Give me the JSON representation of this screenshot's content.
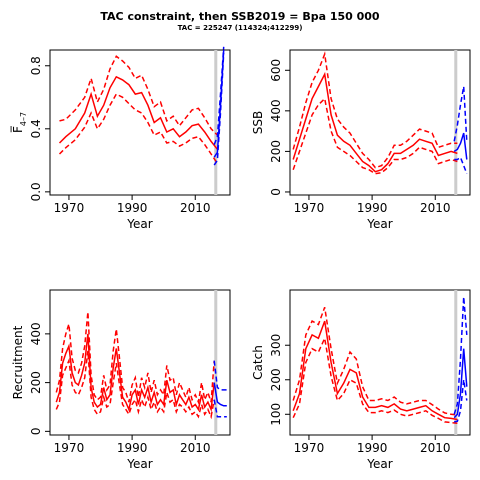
{
  "header": {
    "title": "TAC constraint, then  SSB2019 = Bpa 150 000",
    "subtitle": "TAC = 225247 (114324;412299)"
  },
  "colors": {
    "historic": "#ff0000",
    "projection": "#0000ff",
    "divider": "#cccccc"
  },
  "chart_data": [
    {
      "type": "line",
      "name": "fbar-panel",
      "xlabel": "Year",
      "ylabel": "F̅",
      "ylabel_sub": "4–7",
      "xlim": [
        1964,
        2021
      ],
      "ylim": [
        -0.02,
        0.9
      ],
      "xticks": [
        1970,
        1990,
        2010
      ],
      "yticks": [
        0.0,
        0.4,
        0.8
      ],
      "ytick_labels": [
        "0.0",
        "0.4",
        "0.8"
      ],
      "divider_year": 2016.5,
      "historic": {
        "years": [
          1967,
          1969,
          1972,
          1975,
          1977,
          1979,
          1981,
          1983,
          1985,
          1987,
          1989,
          1991,
          1993,
          1995,
          1997,
          1999,
          2001,
          2003,
          2005,
          2007,
          2009,
          2011,
          2013,
          2015,
          2017
        ],
        "mid": [
          0.31,
          0.35,
          0.4,
          0.5,
          0.62,
          0.48,
          0.55,
          0.66,
          0.73,
          0.71,
          0.68,
          0.62,
          0.63,
          0.55,
          0.44,
          0.47,
          0.38,
          0.4,
          0.35,
          0.38,
          0.42,
          0.43,
          0.38,
          0.32,
          0.27
        ],
        "lo": [
          0.24,
          0.28,
          0.33,
          0.41,
          0.5,
          0.4,
          0.46,
          0.55,
          0.62,
          0.6,
          0.56,
          0.52,
          0.5,
          0.44,
          0.36,
          0.38,
          0.31,
          0.32,
          0.29,
          0.31,
          0.34,
          0.35,
          0.3,
          0.24,
          0.18
        ],
        "hi": [
          0.45,
          0.46,
          0.52,
          0.6,
          0.72,
          0.57,
          0.65,
          0.78,
          0.86,
          0.83,
          0.79,
          0.72,
          0.74,
          0.65,
          0.54,
          0.57,
          0.45,
          0.48,
          0.42,
          0.47,
          0.52,
          0.53,
          0.47,
          0.4,
          0.36
        ]
      },
      "projection": {
        "years": [
          2016,
          2017,
          2018,
          2019
        ],
        "mid": [
          0.22,
          0.25,
          0.55,
          0.9
        ],
        "lo": [
          0.17,
          0.2,
          0.5,
          0.88
        ],
        "hi": [
          0.3,
          0.35,
          0.62,
          0.92
        ]
      }
    },
    {
      "type": "line",
      "name": "ssb-panel",
      "xlabel": "Year",
      "ylabel": "SSB",
      "ylim": [
        -15,
        700
      ],
      "xlim": [
        1964,
        2021
      ],
      "xticks": [
        1970,
        1990,
        2010
      ],
      "yticks": [
        0,
        200,
        400,
        600
      ],
      "ytick_labels": [
        "0",
        "200",
        "400",
        "600"
      ],
      "divider_year": 2016.5,
      "historic": {
        "years": [
          1965,
          1967,
          1969,
          1971,
          1973,
          1975,
          1977,
          1979,
          1981,
          1983,
          1985,
          1987,
          1989,
          1991,
          1993,
          1995,
          1997,
          1999,
          2001,
          2003,
          2005,
          2007,
          2009,
          2011,
          2013,
          2015,
          2017
        ],
        "mid": [
          160,
          260,
          360,
          460,
          520,
          580,
          380,
          280,
          250,
          230,
          190,
          150,
          130,
          100,
          110,
          140,
          190,
          190,
          210,
          230,
          260,
          250,
          240,
          180,
          190,
          200,
          190
        ],
        "lo": [
          110,
          200,
          290,
          380,
          430,
          460,
          300,
          220,
          200,
          180,
          150,
          120,
          110,
          90,
          95,
          120,
          160,
          160,
          170,
          190,
          220,
          210,
          200,
          140,
          150,
          160,
          150
        ],
        "hi": [
          210,
          320,
          440,
          540,
          600,
          680,
          460,
          360,
          320,
          290,
          240,
          190,
          160,
          120,
          130,
          170,
          230,
          230,
          250,
          280,
          310,
          300,
          290,
          220,
          230,
          240,
          240
        ]
      },
      "projection": {
        "years": [
          2016,
          2017,
          2018,
          2019,
          2020
        ],
        "mid": [
          200,
          210,
          240,
          290,
          160
        ],
        "lo": [
          160,
          160,
          170,
          130,
          90
        ],
        "hi": [
          250,
          330,
          430,
          520,
          250
        ]
      }
    },
    {
      "type": "line",
      "name": "recruitment-panel",
      "xlabel": "Year",
      "ylabel": "Recruitment",
      "xlim": [
        1964,
        2021
      ],
      "ylim": [
        -15,
        580
      ],
      "xticks": [
        1970,
        1990,
        2010
      ],
      "yticks": [
        0,
        200,
        400
      ],
      "ytick_labels": [
        "0",
        "200",
        "400"
      ],
      "divider_year": 2016.5,
      "historic": {
        "years": [
          1966,
          1967,
          1968,
          1969,
          1970,
          1971,
          1972,
          1973,
          1974,
          1975,
          1976,
          1977,
          1978,
          1979,
          1980,
          1981,
          1982,
          1983,
          1984,
          1985,
          1986,
          1987,
          1988,
          1989,
          1990,
          1991,
          1992,
          1993,
          1994,
          1995,
          1996,
          1997,
          1998,
          1999,
          2000,
          2001,
          2002,
          2003,
          2004,
          2005,
          2006,
          2007,
          2008,
          2009,
          2010,
          2011,
          2012,
          2013,
          2014,
          2015,
          2016
        ],
        "mid": [
          120,
          160,
          280,
          320,
          350,
          240,
          200,
          190,
          230,
          280,
          400,
          180,
          120,
          100,
          110,
          180,
          130,
          150,
          260,
          340,
          240,
          140,
          120,
          90,
          150,
          170,
          110,
          170,
          140,
          180,
          120,
          160,
          110,
          130,
          110,
          210,
          160,
          170,
          110,
          150,
          130,
          110,
          140,
          100,
          110,
          90,
          150,
          100,
          120,
          90,
          200
        ],
        "lo": [
          90,
          120,
          230,
          260,
          290,
          190,
          160,
          150,
          180,
          220,
          330,
          140,
          90,
          70,
          80,
          140,
          100,
          110,
          200,
          280,
          190,
          110,
          90,
          70,
          110,
          130,
          80,
          130,
          100,
          140,
          90,
          120,
          80,
          100,
          80,
          160,
          120,
          130,
          80,
          110,
          100,
          80,
          100,
          70,
          80,
          60,
          110,
          70,
          90,
          60,
          130
        ],
        "hi": [
          160,
          210,
          340,
          400,
          440,
          300,
          250,
          240,
          280,
          350,
          490,
          230,
          150,
          130,
          140,
          230,
          170,
          190,
          330,
          420,
          300,
          180,
          160,
          120,
          190,
          220,
          140,
          220,
          180,
          240,
          160,
          210,
          150,
          170,
          150,
          270,
          210,
          220,
          150,
          200,
          170,
          140,
          180,
          130,
          150,
          120,
          200,
          130,
          160,
          120,
          290
        ]
      },
      "projection": {
        "years": [
          2016,
          2017,
          2018,
          2019,
          2020
        ],
        "mid": [
          200,
          120,
          110,
          105,
          105
        ],
        "lo": [
          130,
          60,
          60,
          60,
          60
        ],
        "hi": [
          290,
          180,
          170,
          170,
          170
        ]
      }
    },
    {
      "type": "line",
      "name": "catch-panel",
      "xlabel": "Year",
      "ylabel": "Catch",
      "xlim": [
        1964,
        2021
      ],
      "ylim": [
        40,
        460
      ],
      "xticks": [
        1970,
        1990,
        2010
      ],
      "yticks": [
        100,
        200,
        300
      ],
      "ytick_labels": [
        "100",
        "200",
        "300"
      ],
      "divider_year": 2016.5,
      "historic": {
        "years": [
          1965,
          1967,
          1969,
          1971,
          1973,
          1975,
          1977,
          1979,
          1981,
          1983,
          1985,
          1987,
          1989,
          1991,
          1993,
          1995,
          1997,
          1999,
          2001,
          2003,
          2005,
          2007,
          2009,
          2011,
          2013,
          2015,
          2017
        ],
        "mid": [
          110,
          160,
          290,
          330,
          320,
          370,
          250,
          160,
          190,
          230,
          220,
          150,
          120,
          120,
          125,
          120,
          130,
          115,
          110,
          115,
          120,
          125,
          110,
          100,
          90,
          88,
          85
        ],
        "lo": [
          90,
          130,
          250,
          290,
          280,
          320,
          210,
          140,
          160,
          200,
          190,
          130,
          105,
          105,
          110,
          105,
          112,
          100,
          95,
          100,
          105,
          110,
          97,
          88,
          78,
          76,
          74
        ],
        "hi": [
          140,
          200,
          330,
          370,
          360,
          410,
          290,
          190,
          230,
          280,
          260,
          180,
          140,
          140,
          145,
          140,
          150,
          135,
          130,
          135,
          140,
          140,
          128,
          115,
          104,
          100,
          98
        ]
      },
      "projection": {
        "years": [
          2016,
          2017,
          2018,
          2019,
          2020
        ],
        "mid": [
          90,
          100,
          160,
          290,
          180
        ],
        "lo": [
          78,
          80,
          110,
          200,
          140
        ],
        "hi": [
          100,
          130,
          260,
          440,
          330
        ]
      }
    }
  ]
}
